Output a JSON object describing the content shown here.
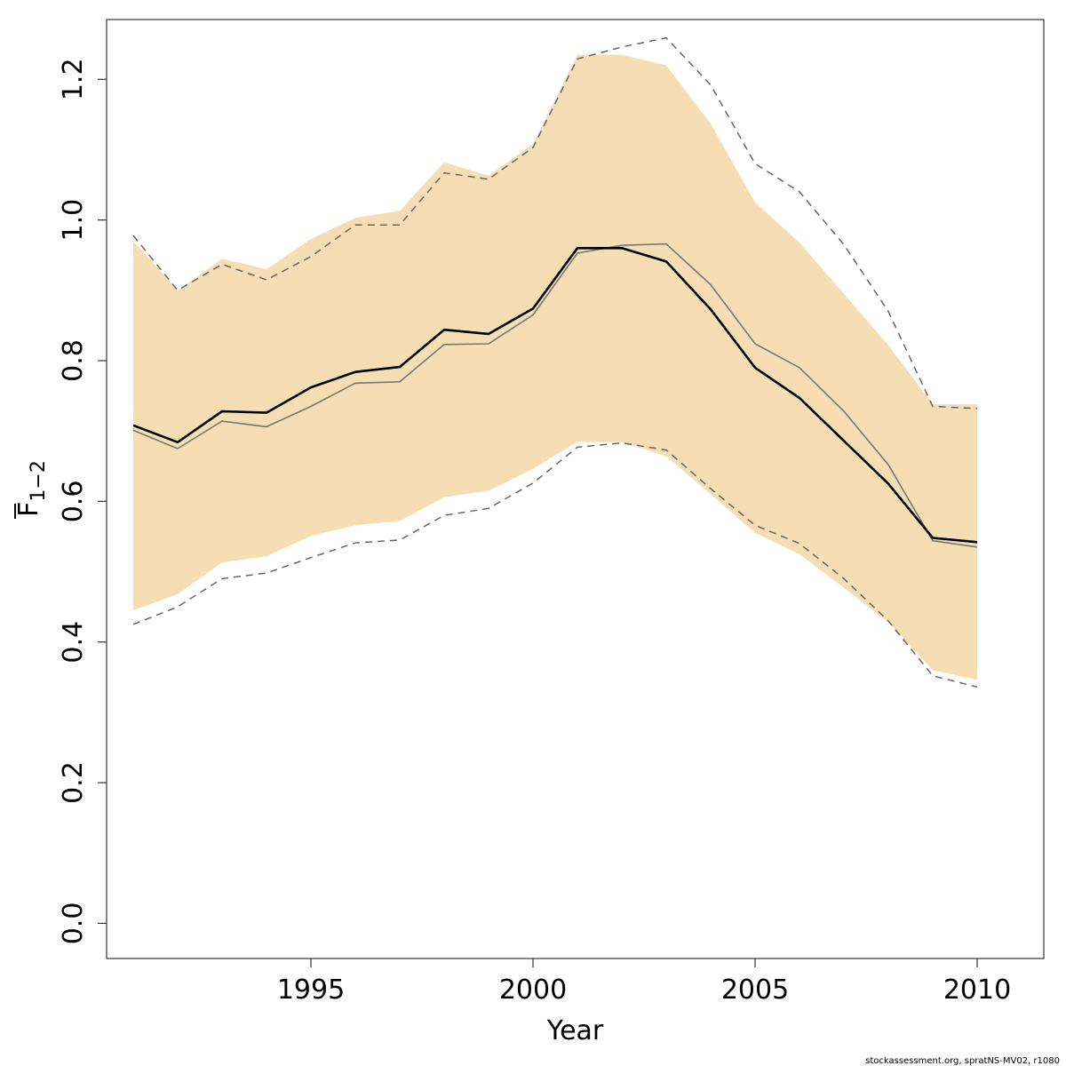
{
  "chart_data": {
    "type": "line",
    "title": "",
    "xlabel": "Year",
    "ylabel_main": "F",
    "ylabel_sub": "1−2",
    "xlim": [
      1990.4,
      2011.5
    ],
    "ylim": [
      -0.05,
      1.285
    ],
    "xticks": [
      "1995",
      "2000",
      "2005",
      "2010"
    ],
    "yticks": [
      "0.0",
      "0.2",
      "0.4",
      "0.6",
      "0.8",
      "1.0",
      "1.2"
    ],
    "x": [
      1991,
      1992,
      1993,
      1994,
      1995,
      1996,
      1997,
      1998,
      1999,
      2000,
      2001,
      2002,
      2003,
      2004,
      2005,
      2006,
      2007,
      2008,
      2009,
      2010
    ],
    "band": {
      "color": "#F5DEB3",
      "upper": [
        0.97,
        0.9,
        0.945,
        0.93,
        0.973,
        1.003,
        1.013,
        1.082,
        1.063,
        1.108,
        1.235,
        1.235,
        1.22,
        1.137,
        1.025,
        0.968,
        0.895,
        0.822,
        0.738,
        0.738
      ],
      "lower": [
        0.445,
        0.468,
        0.513,
        0.522,
        0.551,
        0.566,
        0.572,
        0.606,
        0.615,
        0.646,
        0.685,
        0.684,
        0.664,
        0.61,
        0.555,
        0.525,
        0.477,
        0.428,
        0.36,
        0.346
      ]
    },
    "series": [
      {
        "style": "thick",
        "color": "#000000",
        "values": [
          0.708,
          0.684,
          0.728,
          0.726,
          0.762,
          0.784,
          0.791,
          0.844,
          0.838,
          0.874,
          0.96,
          0.96,
          0.941,
          0.873,
          0.79,
          0.747,
          0.686,
          0.625,
          0.548,
          0.542
        ]
      },
      {
        "style": "thin",
        "color": "#777777",
        "values": [
          0.701,
          0.675,
          0.714,
          0.706,
          0.735,
          0.768,
          0.77,
          0.823,
          0.824,
          0.865,
          0.953,
          0.964,
          0.966,
          0.908,
          0.824,
          0.79,
          0.728,
          0.652,
          0.544,
          0.535
        ]
      },
      {
        "style": "dashed",
        "color": "#666666",
        "values": [
          0.978,
          0.9,
          0.937,
          0.915,
          0.948,
          0.993,
          0.993,
          1.067,
          1.058,
          1.103,
          1.229,
          1.246,
          1.259,
          1.192,
          1.08,
          1.04,
          0.965,
          0.87,
          0.735,
          0.732
        ]
      },
      {
        "style": "dashed",
        "color": "#666666",
        "values": [
          0.425,
          0.45,
          0.49,
          0.498,
          0.52,
          0.541,
          0.545,
          0.58,
          0.59,
          0.626,
          0.677,
          0.683,
          0.673,
          0.618,
          0.566,
          0.54,
          0.49,
          0.43,
          0.352,
          0.336
        ]
      }
    ],
    "grid": false,
    "legend": "none"
  },
  "footer": "stockassessment.org, spratNS-MV02, r1080"
}
